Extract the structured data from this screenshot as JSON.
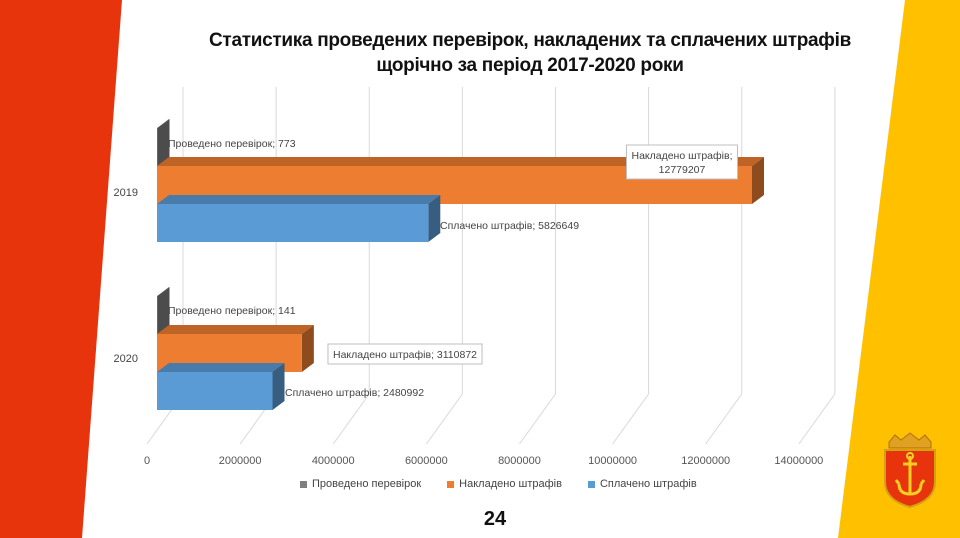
{
  "slide": {
    "title_line1": "Статистика проведених перевірок, накладених та сплачених штрафів",
    "title_line2": "щорічно за період 2017-2020 роки",
    "page_number": "24"
  },
  "colors": {
    "left_band": "#e8340d",
    "right_band": "#ffc000",
    "series_checks": "#7f7f7f",
    "series_imposed": "#ed7d31",
    "series_paid": "#5b9bd5"
  },
  "chart_data": {
    "type": "bar",
    "orientation": "horizontal",
    "style": "3d",
    "categories": [
      "2019",
      "2020"
    ],
    "series": [
      {
        "name": "Проведено перевірок",
        "values": [
          773,
          141
        ],
        "labels": [
          "Проведено перевірок; 773",
          "Проведено перевірок; 141"
        ]
      },
      {
        "name": "Накладено штрафів",
        "values": [
          12779207,
          3110872
        ],
        "labels": [
          "Накладено штрафів; 12779207",
          "Накладено штрафів; 3110872"
        ]
      },
      {
        "name": "Сплачено штрафів",
        "values": [
          5826649,
          2480992
        ],
        "labels": [
          "Сплачено штрафів; 5826649",
          "Сплачено штрафів; 2480992"
        ]
      }
    ],
    "xlim": [
      0,
      14000000
    ],
    "ticks": [
      "0",
      "2000000",
      "4000000",
      "6000000",
      "8000000",
      "10000000",
      "12000000",
      "14000000"
    ],
    "grid": true,
    "legend_position": "bottom"
  }
}
